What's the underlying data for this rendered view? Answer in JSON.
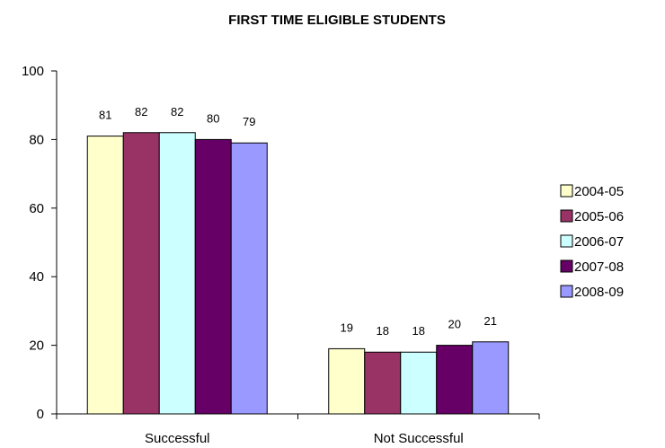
{
  "chart_data": {
    "type": "bar",
    "title": "FIRST TIME ELIGIBLE STUDENTS",
    "xlabel": "",
    "ylabel": "",
    "categories": [
      "Successful",
      "Not Successful"
    ],
    "series": [
      {
        "name": "2004-05",
        "values": [
          81,
          19
        ],
        "color": "#ffffcc"
      },
      {
        "name": "2005-06",
        "values": [
          82,
          18
        ],
        "color": "#993366"
      },
      {
        "name": "2006-07",
        "values": [
          82,
          18
        ],
        "color": "#ccffff"
      },
      {
        "name": "2007-08",
        "values": [
          80,
          20
        ],
        "color": "#660066"
      },
      {
        "name": "2008-09",
        "values": [
          79,
          21
        ],
        "color": "#9999ff"
      }
    ],
    "ylim": [
      0,
      100
    ],
    "yticks": [
      0,
      20,
      40,
      60,
      80,
      100
    ],
    "grid": false,
    "legend_position": "right",
    "data_labels": true
  }
}
